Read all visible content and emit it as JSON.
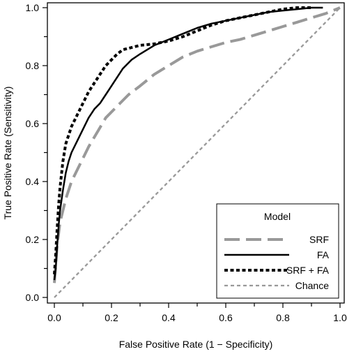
{
  "chart_data": {
    "type": "line",
    "xlabel": "False Positive Rate (1 − Specificity)",
    "ylabel": "True Positive Rate (Sensitivity)",
    "xlim": [
      0,
      1
    ],
    "ylim": [
      0,
      1
    ],
    "x_ticks": [
      "0.0",
      "0.2",
      "0.4",
      "0.6",
      "0.8",
      "1.0"
    ],
    "y_ticks": [
      "0.0",
      "0.2",
      "0.4",
      "0.6",
      "0.8",
      "1.0"
    ],
    "grid": false,
    "legend": {
      "title": "Model",
      "placement": "bottom-right",
      "entries": [
        "SRF",
        "FA",
        "SRF + FA",
        "Chance"
      ]
    },
    "series": [
      {
        "name": "SRF",
        "color": "#999999",
        "style": "long-dash",
        "x": [
          0,
          0.01,
          0.02,
          0.04,
          0.06,
          0.08,
          0.1,
          0.12,
          0.15,
          0.18,
          0.2,
          0.23,
          0.26,
          0.3,
          0.35,
          0.4,
          0.45,
          0.5,
          0.55,
          0.6,
          0.65,
          0.7,
          0.75,
          0.8,
          0.85,
          0.9,
          0.95,
          1.0
        ],
        "y": [
          0.05,
          0.18,
          0.26,
          0.34,
          0.4,
          0.44,
          0.48,
          0.52,
          0.57,
          0.62,
          0.64,
          0.67,
          0.7,
          0.73,
          0.77,
          0.8,
          0.83,
          0.85,
          0.865,
          0.88,
          0.89,
          0.905,
          0.92,
          0.935,
          0.95,
          0.965,
          0.98,
          1.0
        ]
      },
      {
        "name": "FA",
        "color": "#000000",
        "style": "solid",
        "x": [
          0,
          0.005,
          0.01,
          0.015,
          0.02,
          0.03,
          0.04,
          0.05,
          0.06,
          0.08,
          0.1,
          0.12,
          0.14,
          0.16,
          0.18,
          0.2,
          0.22,
          0.24,
          0.27,
          0.3,
          0.35,
          0.4,
          0.45,
          0.5,
          0.55,
          0.6,
          0.65,
          0.7,
          0.75,
          0.8,
          0.85,
          0.9,
          0.94
        ],
        "y": [
          0.06,
          0.1,
          0.18,
          0.25,
          0.3,
          0.37,
          0.43,
          0.47,
          0.5,
          0.54,
          0.58,
          0.62,
          0.65,
          0.67,
          0.7,
          0.73,
          0.76,
          0.79,
          0.82,
          0.84,
          0.87,
          0.89,
          0.91,
          0.93,
          0.945,
          0.955,
          0.965,
          0.975,
          0.985,
          0.99,
          0.995,
          1.0,
          1.0
        ]
      },
      {
        "name": "SRF + FA",
        "color": "#000000",
        "style": "dotted",
        "x": [
          0,
          0.005,
          0.01,
          0.015,
          0.02,
          0.03,
          0.04,
          0.05,
          0.06,
          0.08,
          0.1,
          0.12,
          0.14,
          0.16,
          0.18,
          0.2,
          0.22,
          0.24,
          0.26,
          0.28,
          0.3,
          0.35,
          0.4,
          0.45,
          0.5,
          0.55,
          0.6,
          0.65,
          0.7,
          0.75,
          0.8,
          0.85,
          0.9
        ],
        "y": [
          0.08,
          0.15,
          0.24,
          0.32,
          0.38,
          0.47,
          0.53,
          0.56,
          0.59,
          0.63,
          0.67,
          0.71,
          0.74,
          0.77,
          0.8,
          0.82,
          0.84,
          0.855,
          0.86,
          0.865,
          0.87,
          0.875,
          0.885,
          0.9,
          0.92,
          0.94,
          0.955,
          0.965,
          0.975,
          0.985,
          0.995,
          1.0,
          1.0
        ]
      },
      {
        "name": "Chance",
        "color": "#999999",
        "style": "short-dash",
        "x": [
          0,
          1
        ],
        "y": [
          0,
          1
        ]
      }
    ]
  }
}
